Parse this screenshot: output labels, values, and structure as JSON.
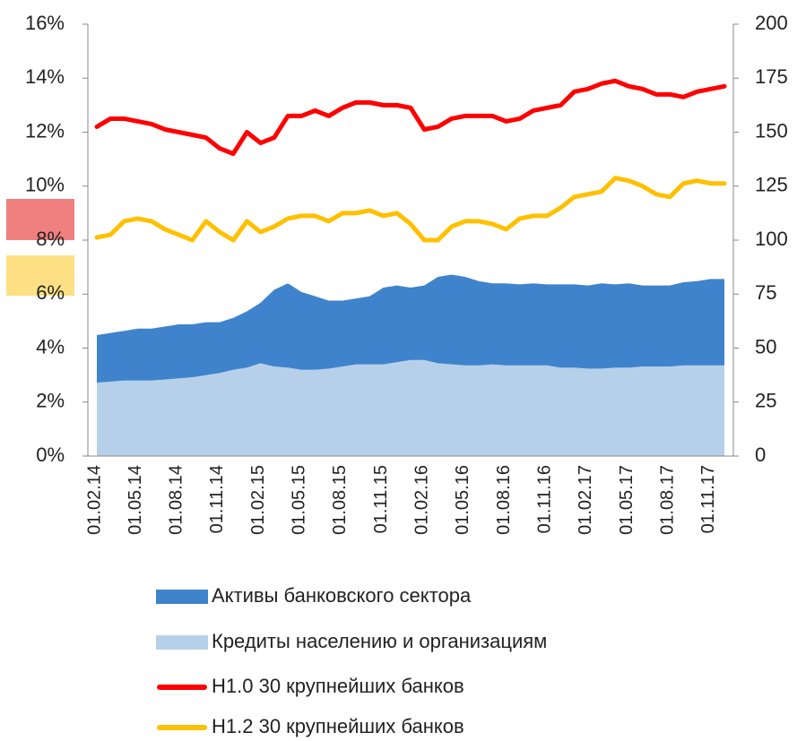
{
  "chart_data": {
    "type": "line",
    "categories": [
      "01.02.14",
      null,
      null,
      "01.05.14",
      null,
      null,
      "01.08.14",
      null,
      null,
      "01.11.14",
      null,
      null,
      "01.02.15",
      null,
      null,
      "01.05.15",
      null,
      null,
      "01.08.15",
      null,
      null,
      "01.11.15",
      null,
      null,
      "01.02.16",
      null,
      null,
      "01.05.16",
      null,
      null,
      "01.08.16",
      null,
      null,
      "01.11.16",
      null,
      null,
      "01.02.17",
      null,
      null,
      "01.05.17",
      null,
      null,
      "01.08.17",
      null,
      null,
      "01.11.17",
      null
    ],
    "series": [
      {
        "name": "Активы банковского сектора",
        "type": "area",
        "axis": "y2",
        "color": "#3f83cc",
        "values": [
          56,
          57,
          58,
          59,
          59,
          60,
          61,
          61,
          62,
          62,
          64,
          67,
          71,
          77,
          80,
          76,
          74,
          72,
          72,
          73,
          74,
          78,
          79,
          78,
          79,
          83,
          84,
          83,
          81,
          80,
          80,
          79.5,
          80,
          79.5,
          79.5,
          79.5,
          79,
          80,
          79.5,
          80,
          79,
          79,
          79,
          80.5,
          81,
          82,
          82
        ]
      },
      {
        "name": "Кредиты населению и организациям",
        "type": "area",
        "axis": "y2",
        "color": "#b7d0ea",
        "values": [
          34,
          34.5,
          35,
          35,
          35,
          35.5,
          36,
          36.5,
          37.5,
          38.5,
          40,
          41,
          43,
          41.5,
          41,
          40,
          40,
          40.5,
          41.5,
          42.5,
          42.5,
          42.5,
          43.5,
          44.5,
          44.5,
          43,
          42.5,
          42,
          42,
          42.5,
          42,
          42,
          42,
          42,
          41,
          41,
          40.5,
          40.5,
          41,
          41,
          41.5,
          41.5,
          41.5,
          42,
          42,
          42,
          42
        ]
      },
      {
        "name": "Н1.0 30 крупнейших банков",
        "type": "line",
        "color": "#ff0000",
        "values": [
          12.2,
          12.5,
          12.5,
          12.4,
          12.3,
          12.1,
          12.0,
          11.9,
          11.8,
          11.4,
          11.2,
          12.0,
          11.6,
          11.8,
          12.6,
          12.6,
          12.8,
          12.6,
          12.9,
          13.1,
          13.1,
          13.0,
          13.0,
          12.9,
          12.1,
          12.2,
          12.5,
          12.6,
          12.6,
          12.6,
          12.4,
          12.5,
          12.8,
          12.9,
          13.0,
          13.5,
          13.6,
          13.8,
          13.9,
          13.7,
          13.6,
          13.4,
          13.4,
          13.3,
          13.5,
          13.6,
          13.7
        ]
      },
      {
        "name": "Н1.2 30 крупнейших банков",
        "type": "line",
        "color": "#ffc000",
        "values": [
          8.1,
          8.2,
          8.7,
          8.8,
          8.7,
          8.4,
          8.2,
          8.0,
          8.7,
          8.3,
          8.0,
          8.7,
          8.3,
          8.5,
          8.8,
          8.9,
          8.9,
          8.7,
          9.0,
          9.0,
          9.1,
          8.9,
          9.0,
          8.6,
          8.0,
          8.0,
          8.5,
          8.7,
          8.7,
          8.6,
          8.4,
          8.8,
          8.9,
          8.9,
          9.2,
          9.6,
          9.7,
          9.8,
          10.3,
          10.2,
          10.0,
          9.7,
          9.6,
          10.1,
          10.2,
          10.1,
          10.1
        ]
      }
    ],
    "ylim": [
      0,
      16
    ],
    "yticks": [
      {
        "value": 0,
        "label": "0%"
      },
      {
        "value": 2,
        "label": "2%"
      },
      {
        "value": 4,
        "label": "4%"
      },
      {
        "value": 6,
        "label": "6%"
      },
      {
        "value": 8,
        "label": "8%"
      },
      {
        "value": 10,
        "label": "10%"
      },
      {
        "value": 12,
        "label": "12%"
      },
      {
        "value": 14,
        "label": "14%"
      },
      {
        "value": 16,
        "label": "16%"
      }
    ],
    "y2lim": [
      0,
      200
    ],
    "y2ticks": [
      0,
      25,
      50,
      75,
      100,
      125,
      150,
      175,
      200
    ],
    "legend": "bottom"
  }
}
